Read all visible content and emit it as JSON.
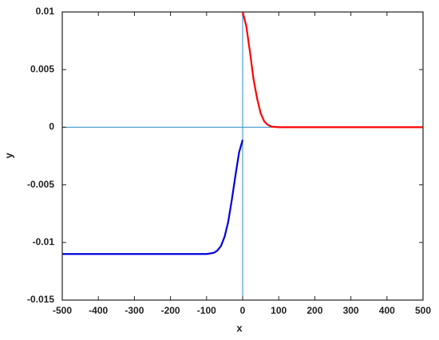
{
  "chart_data": {
    "type": "line",
    "x_label": "x",
    "y_label": "y",
    "xlim": [
      -500,
      500
    ],
    "ylim": [
      -0.015,
      0.01
    ],
    "xticks": [
      -500,
      -400,
      -300,
      -200,
      -100,
      0,
      100,
      200,
      300,
      400,
      500
    ],
    "yticks": [
      -0.015,
      -0.01,
      -0.005,
      0,
      0.005,
      0.01
    ],
    "series": [
      {
        "color": "#ff0000",
        "x": [
          0,
          10,
          20,
          30,
          40,
          50,
          60,
          70,
          80,
          100,
          200,
          300,
          400,
          500
        ],
        "values": [
          0.01,
          0.0088,
          0.0066,
          0.0042,
          0.0025,
          0.0012,
          0.0005,
          0.0002,
          5e-05,
          0,
          0,
          0,
          0,
          0
        ]
      },
      {
        "color": "#0000dd",
        "x": [
          -500,
          -400,
          -300,
          -200,
          -100,
          -80,
          -70,
          -60,
          -50,
          -40,
          -30,
          -20,
          -10,
          0
        ],
        "values": [
          -0.011,
          -0.011,
          -0.011,
          -0.011,
          -0.011,
          -0.0109,
          -0.0107,
          -0.0103,
          -0.0095,
          -0.0082,
          -0.0063,
          -0.0042,
          -0.0022,
          -0.0011
        ]
      }
    ]
  }
}
